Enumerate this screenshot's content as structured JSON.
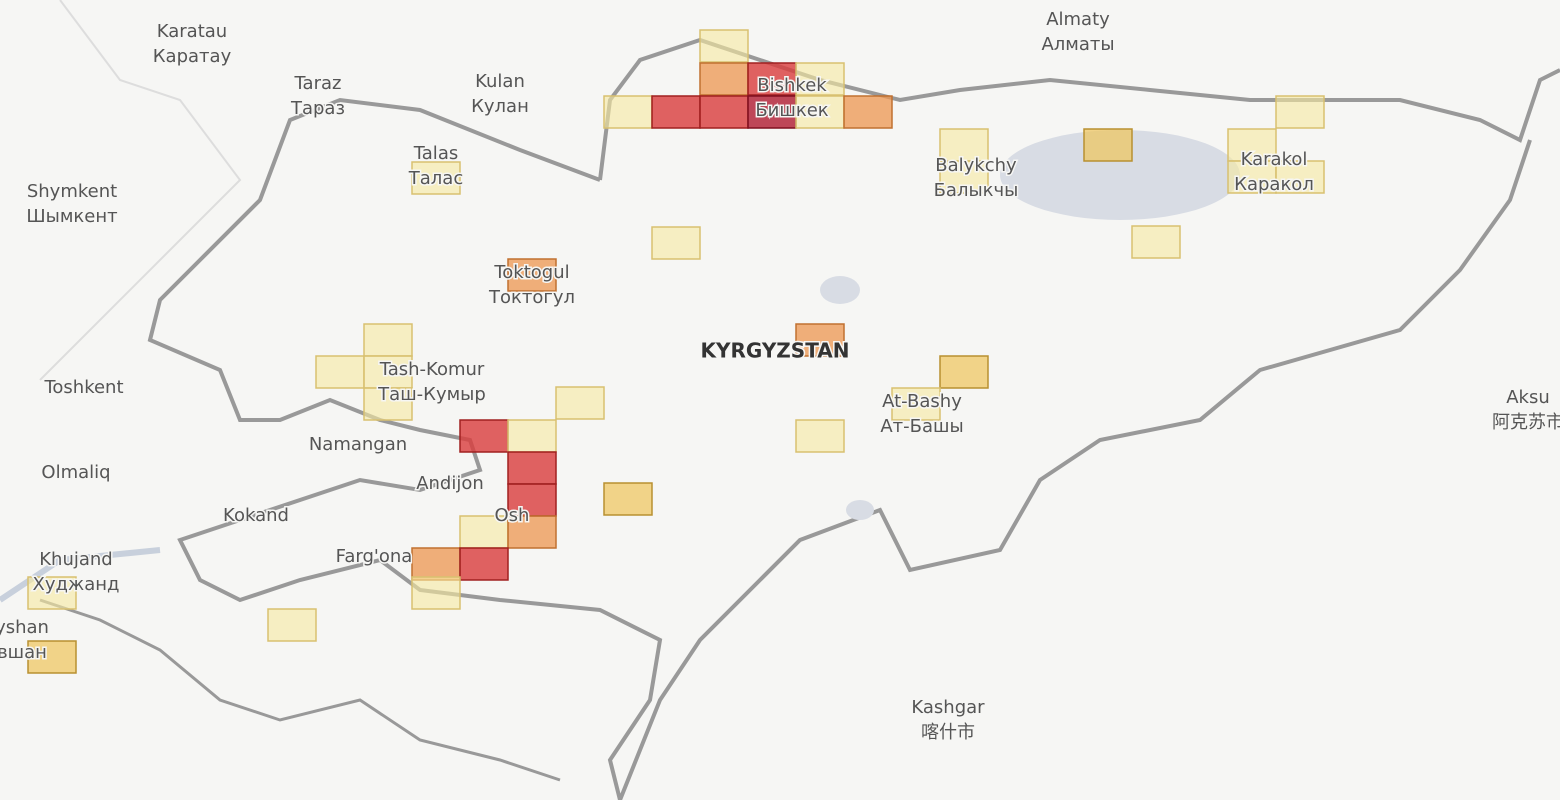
{
  "places": [
    {
      "name": "Karatau",
      "local": "Каратау"
    },
    {
      "name": "Taraz",
      "local": "Тараз"
    },
    {
      "name": "Kulan",
      "local": "Кулан"
    },
    {
      "name": "Bishkek",
      "local": "Бишкек"
    },
    {
      "name": "Almaty",
      "local": "Алматы"
    },
    {
      "name": "Talas",
      "local": "Талас"
    },
    {
      "name": "Shymkent",
      "local": "Шымкент"
    },
    {
      "name": "Balykchy",
      "local": "Балыкчы"
    },
    {
      "name": "Karakol",
      "local": "Каракол"
    },
    {
      "name": "Toktogul",
      "local": "Токтогул"
    },
    {
      "name": "Tash-Komur",
      "local": "Таш-Кумыр"
    },
    {
      "name": "At-Bashy",
      "local": "Ат-Башы"
    },
    {
      "name": "Khujand",
      "local": "Худжанд"
    },
    {
      "name": "yshan",
      "local": "вшан"
    },
    {
      "name": "Aksu",
      "local": "阿克苏市"
    },
    {
      "name": "Kashgar",
      "local": "喀什市"
    }
  ],
  "single_places": [
    "Toshkent",
    "Namangan",
    "Olmaliq",
    "Andijon",
    "Kokand",
    "Osh",
    "Farg'ona"
  ],
  "country": "KYRGYZSTAN"
}
